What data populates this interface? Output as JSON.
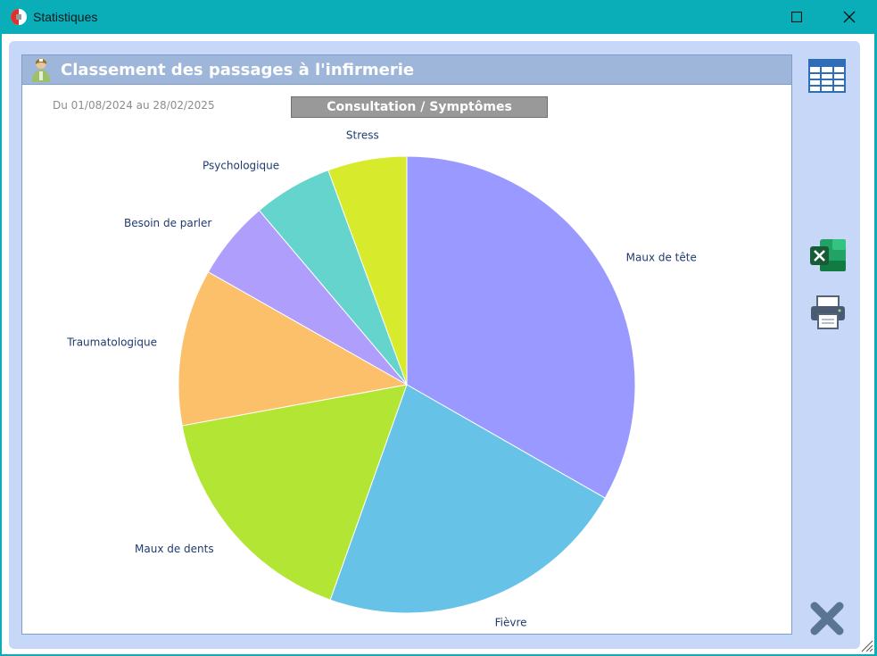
{
  "window": {
    "title": "Statistiques"
  },
  "panel": {
    "title": "Classement des passages à l'infirmerie",
    "period": "Du 01/08/2024 au 28/02/2025",
    "chart_selector": "Consultation / Symptômes"
  },
  "chart_data": {
    "type": "pie",
    "labels": [
      "Maux de tête",
      "Fièvre",
      "Maux de dents",
      "Traumatologique",
      "Besoin de parler",
      "Psychologique",
      "Stress"
    ],
    "values": [
      33.3,
      22.2,
      16.7,
      11.1,
      5.6,
      5.6,
      5.6
    ],
    "colors": [
      "#9999ff",
      "#66c2e6",
      "#b3e534",
      "#fcc06b",
      "#b09efc",
      "#64d4cc",
      "#d8ea2c"
    ],
    "label_color": "#1f3b6e"
  }
}
